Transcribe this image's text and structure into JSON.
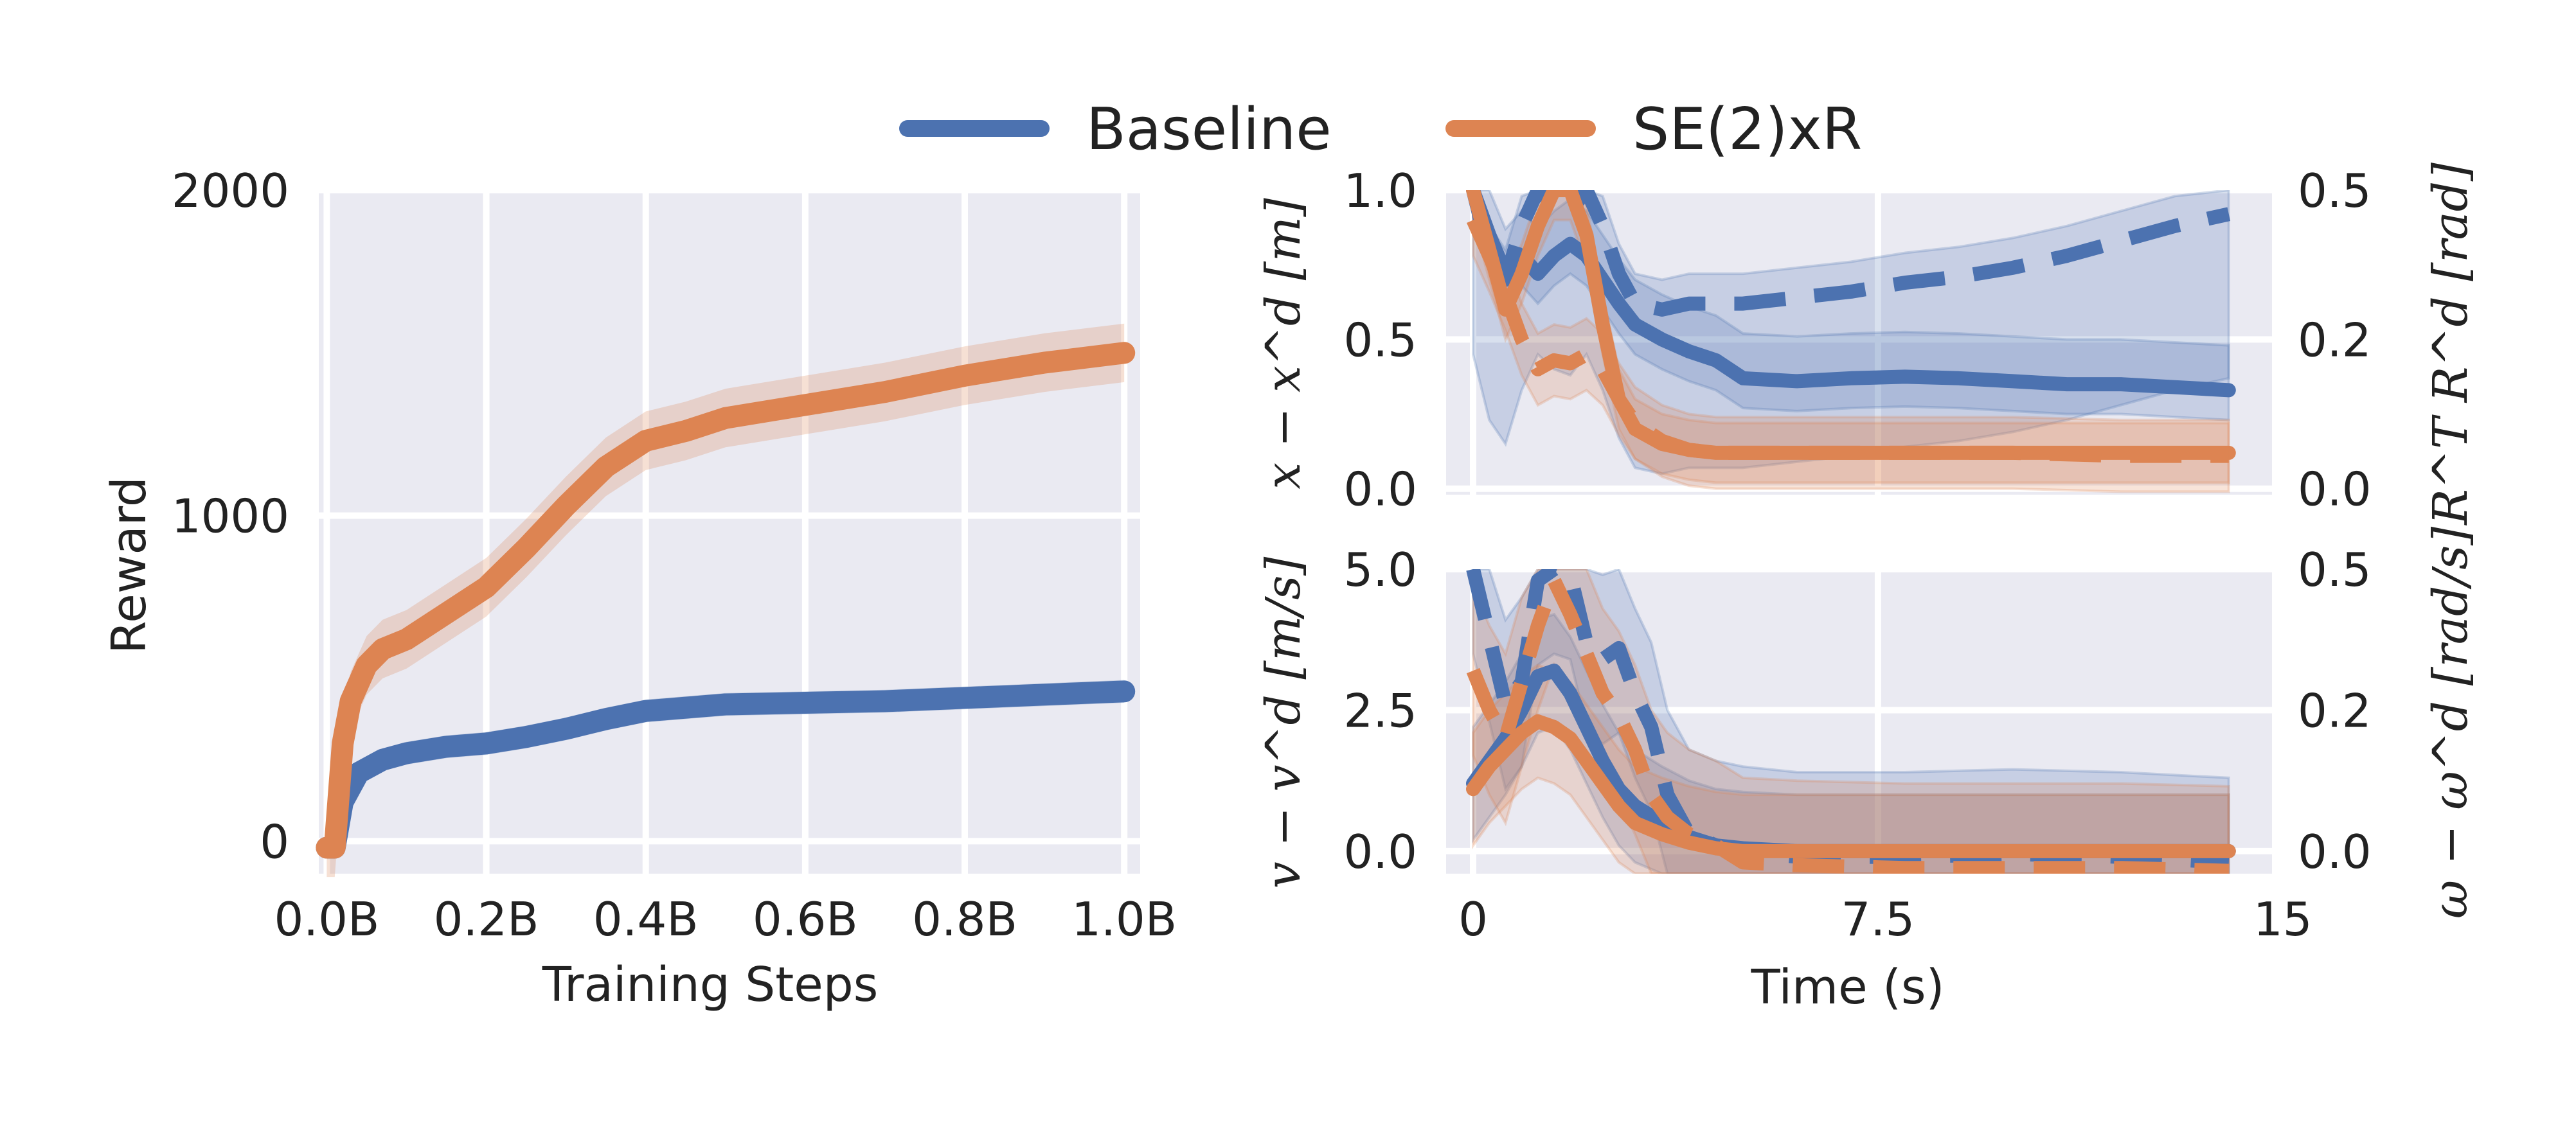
{
  "legend": {
    "entries": [
      {
        "name": "Baseline",
        "color": "#4c72b0"
      },
      {
        "name": "SE(2)xR",
        "color": "#dd8452"
      }
    ]
  },
  "chart_data": [
    {
      "type": "line",
      "panel": "training",
      "title": "",
      "xlabel": "Training Steps",
      "ylabel": "Reward",
      "xlim": [
        -0.01,
        1.02
      ],
      "ylim": [
        -100,
        2000
      ],
      "xticks": [
        0.0,
        0.2,
        0.4,
        0.6,
        0.8,
        1.0
      ],
      "xtick_labels": [
        "0.0B",
        "0.2B",
        "0.4B",
        "0.6B",
        "0.8B",
        "1.0B"
      ],
      "yticks": [
        0,
        1000,
        2000
      ],
      "ytick_labels": [
        "0",
        "1000",
        "2000"
      ],
      "series": [
        {
          "name": "Baseline",
          "color": "#4c72b0",
          "x": [
            0.0,
            0.01,
            0.02,
            0.04,
            0.07,
            0.1,
            0.15,
            0.2,
            0.25,
            0.3,
            0.35,
            0.4,
            0.5,
            0.6,
            0.7,
            0.8,
            0.9,
            1.0
          ],
          "y": [
            -20,
            -20,
            120,
            210,
            250,
            270,
            290,
            300,
            320,
            345,
            375,
            400,
            420,
            425,
            430,
            440,
            450,
            460
          ],
          "band": 35
        },
        {
          "name": "SE(2)xR",
          "color": "#dd8452",
          "x": [
            0.0,
            0.01,
            0.02,
            0.03,
            0.05,
            0.07,
            0.1,
            0.15,
            0.2,
            0.25,
            0.3,
            0.35,
            0.4,
            0.45,
            0.5,
            0.6,
            0.7,
            0.8,
            0.9,
            1.0
          ],
          "y": [
            -20,
            -20,
            300,
            430,
            540,
            590,
            620,
            700,
            780,
            900,
            1030,
            1150,
            1230,
            1260,
            1300,
            1340,
            1380,
            1430,
            1470,
            1500
          ],
          "band": 90
        }
      ]
    },
    {
      "type": "line",
      "panel": "position-error",
      "xlim": [
        -0.5,
        14.8
      ],
      "ylim": [
        -0.02,
        1.0
      ],
      "ylim_right": [
        0.0,
        0.5
      ],
      "ylabel": "x − x^d [m]",
      "ylabel_right": "R^T R^d [rad]",
      "yticks": [
        0.0,
        0.5,
        1.0
      ],
      "ytick_labels": [
        "0.0",
        "0.5",
        "1.0"
      ],
      "yticks_right": [
        0.0,
        0.2,
        0.5
      ],
      "ytick_labels_right": [
        "0.0",
        "0.2",
        "0.5"
      ],
      "series": [
        {
          "name": "Baseline position",
          "color": "#4c72b0",
          "style": "solid",
          "x": [
            0,
            0.3,
            0.6,
            0.9,
            1.2,
            1.5,
            1.8,
            2.1,
            2.4,
            2.7,
            3.0,
            3.5,
            4.0,
            4.5,
            5.0,
            6.0,
            7.0,
            8.0,
            9.0,
            10.0,
            11.0,
            12.0,
            13.0,
            14.0
          ],
          "y": [
            1.0,
            0.85,
            0.72,
            0.78,
            0.72,
            0.78,
            0.82,
            0.78,
            0.7,
            0.62,
            0.55,
            0.5,
            0.46,
            0.43,
            0.37,
            0.36,
            0.37,
            0.375,
            0.37,
            0.36,
            0.35,
            0.35,
            0.34,
            0.33
          ],
          "band_low": 0.1,
          "band_high": 0.15
        },
        {
          "name": "Baseline orientation",
          "color": "#4c72b0",
          "style": "dashed",
          "x": [
            0,
            0.3,
            0.6,
            0.9,
            1.2,
            1.5,
            1.8,
            2.1,
            2.4,
            2.7,
            3.0,
            3.5,
            4.0,
            5.0,
            6.0,
            7.0,
            8.0,
            9.0,
            10.0,
            11.0,
            12.0,
            13.0,
            14.0
          ],
          "y": [
            1.0,
            0.78,
            0.7,
            0.88,
            1.0,
            0.95,
            0.93,
            1.0,
            0.88,
            0.72,
            0.62,
            0.6,
            0.62,
            0.62,
            0.64,
            0.66,
            0.69,
            0.71,
            0.74,
            0.78,
            0.83,
            0.88,
            0.92
          ],
          "band_low": 0.55,
          "band_high": 0.1
        },
        {
          "name": "SE(2)xR position",
          "color": "#dd8452",
          "style": "solid",
          "x": [
            0,
            0.3,
            0.6,
            0.9,
            1.2,
            1.5,
            1.8,
            2.1,
            2.4,
            2.7,
            3.0,
            3.5,
            4.0,
            4.5,
            5.0,
            6.0,
            8.0,
            10.0,
            12.0,
            14.0
          ],
          "y": [
            1.0,
            0.8,
            0.6,
            0.72,
            0.88,
            1.0,
            1.0,
            0.85,
            0.55,
            0.3,
            0.2,
            0.15,
            0.13,
            0.12,
            0.12,
            0.12,
            0.12,
            0.12,
            0.12,
            0.12
          ],
          "band_low": 0.1,
          "band_high": 0.1
        },
        {
          "name": "SE(2)xR orientation",
          "color": "#dd8452",
          "style": "dashed",
          "x": [
            0,
            0.3,
            0.6,
            0.9,
            1.2,
            1.5,
            1.8,
            2.1,
            2.4,
            2.7,
            3.0,
            3.5,
            4.0,
            4.5,
            5.0,
            6.0,
            8.0,
            10.0,
            12.0,
            14.0
          ],
          "y": [
            0.9,
            0.78,
            0.65,
            0.5,
            0.4,
            0.43,
            0.42,
            0.45,
            0.4,
            0.3,
            0.22,
            0.16,
            0.13,
            0.12,
            0.12,
            0.12,
            0.12,
            0.12,
            0.11,
            0.11
          ],
          "band_low": 0.12,
          "band_high": 0.12
        }
      ]
    },
    {
      "type": "line",
      "panel": "velocity-error",
      "xlabel": "Time (s)",
      "xlim": [
        -0.5,
        14.8
      ],
      "ylim": [
        -0.4,
        5.0
      ],
      "ylim_right": [
        0.0,
        0.5
      ],
      "ylabel": "v − v^d [m/s]",
      "ylabel_right": "ω − ω^d [rad/s]",
      "xticks": [
        0,
        7.5,
        15
      ],
      "xtick_labels": [
        "0",
        "7.5",
        "15"
      ],
      "yticks": [
        0.0,
        2.5,
        5.0
      ],
      "ytick_labels": [
        "0.0",
        "2.5",
        "5.0"
      ],
      "yticks_right": [
        0.0,
        0.2,
        0.5
      ],
      "ytick_labels_right": [
        "0.0",
        "0.2",
        "0.5"
      ],
      "series": [
        {
          "name": "Baseline linear",
          "color": "#4c72b0",
          "style": "solid",
          "x": [
            0,
            0.3,
            0.6,
            0.9,
            1.2,
            1.5,
            1.8,
            2.1,
            2.4,
            2.7,
            3.0,
            3.5,
            4.0,
            4.5,
            5.0,
            6.0,
            8.0,
            10.0,
            12.0,
            14.0
          ],
          "y": [
            1.2,
            1.6,
            2.0,
            2.5,
            3.1,
            3.2,
            2.8,
            2.2,
            1.6,
            1.1,
            0.8,
            0.5,
            0.25,
            0.1,
            0.05,
            0.0,
            0.0,
            0.0,
            0.0,
            0.0
          ],
          "band_low": 1.0,
          "band_high": 1.0
        },
        {
          "name": "Baseline angular",
          "color": "#4c72b0",
          "style": "dashed",
          "x": [
            0,
            0.3,
            0.6,
            0.9,
            1.2,
            1.5,
            1.8,
            2.1,
            2.4,
            2.7,
            3.0,
            3.3,
            3.6,
            4.0,
            4.5,
            5.0,
            6.0,
            8.0,
            10.0,
            12.0,
            14.0
          ],
          "y": [
            5.0,
            3.8,
            2.6,
            3.0,
            4.8,
            5.0,
            4.9,
            3.7,
            3.4,
            3.6,
            2.8,
            2.2,
            1.0,
            0.3,
            0.1,
            0.0,
            -0.1,
            -0.1,
            -0.05,
            -0.1,
            -0.2
          ],
          "band_low": 1.5,
          "band_high": 1.5
        },
        {
          "name": "SE(2)xR linear",
          "color": "#dd8452",
          "style": "solid",
          "x": [
            0,
            0.3,
            0.6,
            0.9,
            1.2,
            1.5,
            1.8,
            2.1,
            2.4,
            2.7,
            3.0,
            3.5,
            4.0,
            4.5,
            5.0,
            6.0,
            8.0,
            10.0,
            12.0,
            14.0
          ],
          "y": [
            1.1,
            1.5,
            1.8,
            2.1,
            2.3,
            2.2,
            2.0,
            1.6,
            1.2,
            0.8,
            0.5,
            0.3,
            0.15,
            0.05,
            0.0,
            0.0,
            0.0,
            0.0,
            0.0,
            0.0
          ],
          "band_low": 1.0,
          "band_high": 1.0
        },
        {
          "name": "SE(2)xR angular",
          "color": "#dd8452",
          "style": "dashed",
          "x": [
            0,
            0.3,
            0.6,
            0.9,
            1.2,
            1.5,
            1.8,
            2.1,
            2.4,
            2.7,
            3.0,
            3.3,
            3.6,
            4.0,
            4.5,
            5.0,
            6.0,
            8.0,
            10.0,
            12.0,
            14.0
          ],
          "y": [
            3.2,
            2.5,
            2.0,
            3.0,
            4.0,
            4.8,
            4.2,
            3.5,
            2.8,
            2.4,
            1.8,
            1.0,
            0.6,
            0.3,
            0.1,
            -0.2,
            -0.25,
            -0.3,
            -0.3,
            -0.3,
            -0.35
          ],
          "band_low": 1.5,
          "band_high": 1.5
        }
      ]
    }
  ]
}
